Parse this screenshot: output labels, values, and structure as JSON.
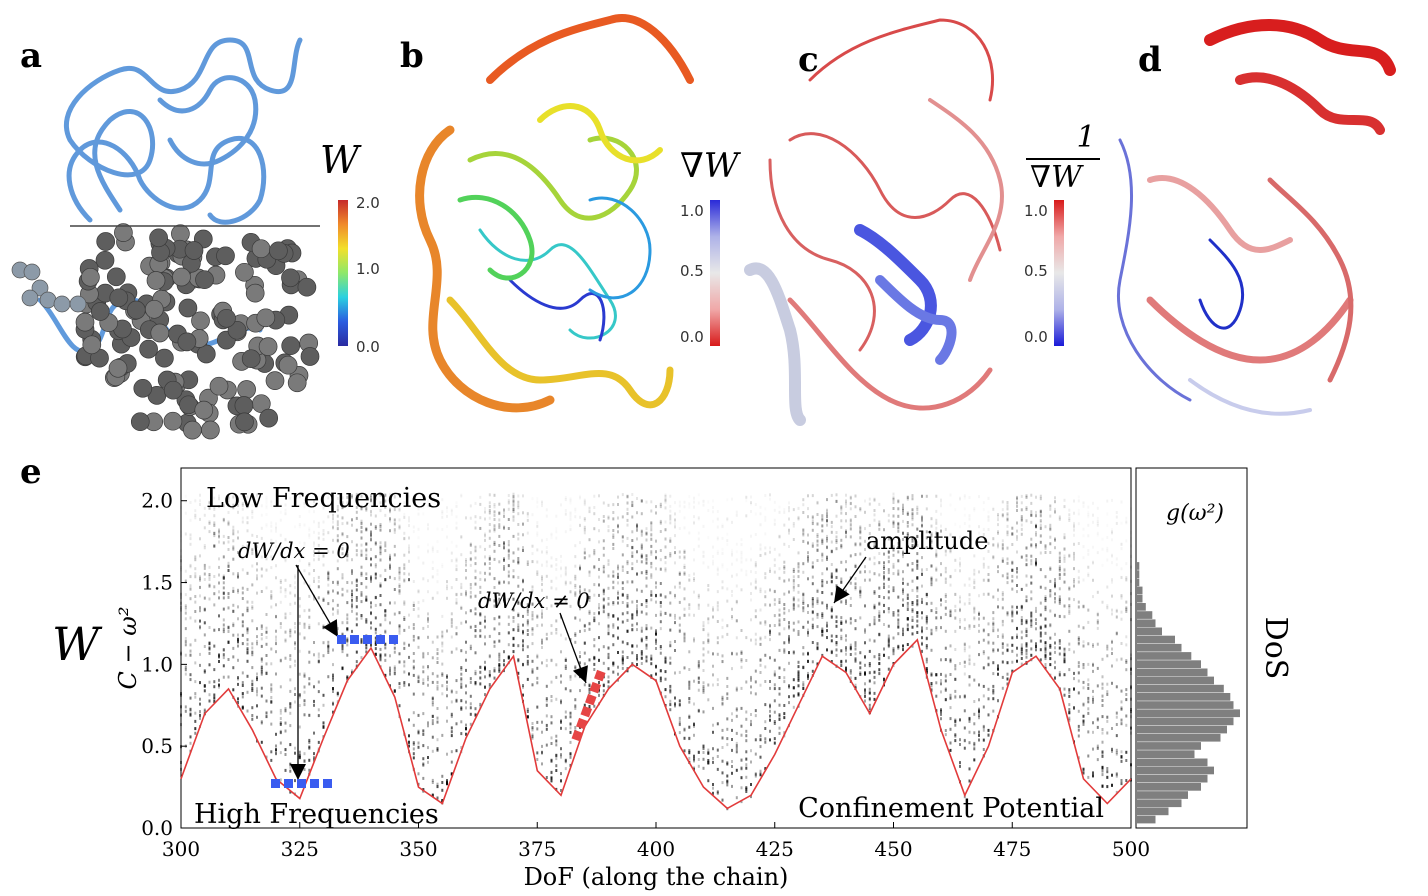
{
  "panels": {
    "a": {
      "letter": "a",
      "colorbar_label": "W",
      "colorbar_ticks": [
        "2.0",
        "1.0",
        "0.0"
      ]
    },
    "b": {
      "letter": "b",
      "colorbar_label": "∇W",
      "colorbar_ticks": [
        "1.0",
        "0.5",
        "0.0"
      ]
    },
    "c": {
      "letter": "c",
      "colorbar_label_num": "1",
      "colorbar_label_den": "∇W",
      "colorbar_ticks": [
        "1.0",
        "0.5",
        "0.0"
      ]
    },
    "d": {
      "letter": "d"
    },
    "e": {
      "letter": "e"
    }
  },
  "colors": {
    "protein_blue": "#4f8fd8",
    "sphere_gray": "#6e6e6e",
    "confinement_red": "#e23b3b",
    "marker_blue": "#3a5cf0",
    "marker_red": "#e64545",
    "dos_gray": "#7f7f7f"
  },
  "chart_data": {
    "type": "line",
    "title": "",
    "xlabel": "DoF (along the chain)",
    "ylabel": "C − ω²",
    "ylabel_left": "W",
    "xlim": [
      300,
      500
    ],
    "ylim": [
      0,
      2.2
    ],
    "xticks": [
      "300",
      "325",
      "350",
      "375",
      "400",
      "425",
      "450",
      "475",
      "500"
    ],
    "yticks": [
      "0.0",
      "0.5",
      "1.0",
      "1.5",
      "2.0"
    ],
    "series": [
      {
        "name": "Confinement Potential",
        "x": [
          300,
          305,
          310,
          315,
          320,
          325,
          330,
          335,
          340,
          345,
          350,
          355,
          360,
          365,
          370,
          375,
          380,
          385,
          390,
          395,
          400,
          405,
          410,
          415,
          420,
          425,
          430,
          435,
          440,
          445,
          450,
          455,
          460,
          465,
          470,
          475,
          480,
          485,
          490,
          495,
          500
        ],
        "y": [
          0.3,
          0.7,
          0.85,
          0.6,
          0.3,
          0.18,
          0.55,
          0.9,
          1.1,
          0.8,
          0.25,
          0.15,
          0.55,
          0.85,
          1.05,
          0.35,
          0.2,
          0.62,
          0.85,
          1.0,
          0.9,
          0.5,
          0.25,
          0.12,
          0.2,
          0.45,
          0.75,
          1.05,
          0.95,
          0.7,
          1.0,
          1.15,
          0.6,
          0.2,
          0.5,
          0.95,
          1.05,
          0.85,
          0.3,
          0.15,
          0.3
        ]
      }
    ],
    "annotations": {
      "low": "Low Frequencies",
      "high": "High Frequencies",
      "confinement": "Confinement Potential",
      "amplitude": "amplitude",
      "dw_zero": "dW/dx = 0",
      "dw_nonzero": "dW/dx ≠ 0"
    },
    "dos": {
      "label": "g(ω²)",
      "axis_label": "DoS",
      "bins_y": [
        0.05,
        0.1,
        0.15,
        0.2,
        0.25,
        0.3,
        0.35,
        0.4,
        0.45,
        0.5,
        0.55,
        0.6,
        0.65,
        0.7,
        0.75,
        0.8,
        0.85,
        0.9,
        0.95,
        1.0,
        1.05,
        1.1,
        1.15,
        1.2,
        1.25,
        1.3,
        1.35,
        1.4,
        1.45,
        1.5,
        1.55,
        1.6
      ],
      "counts": [
        6,
        10,
        14,
        16,
        20,
        22,
        24,
        22,
        18,
        20,
        26,
        28,
        30,
        32,
        30,
        29,
        27,
        24,
        22,
        20,
        17,
        14,
        12,
        8,
        6,
        5,
        3,
        2,
        2,
        1,
        1,
        1
      ]
    }
  }
}
